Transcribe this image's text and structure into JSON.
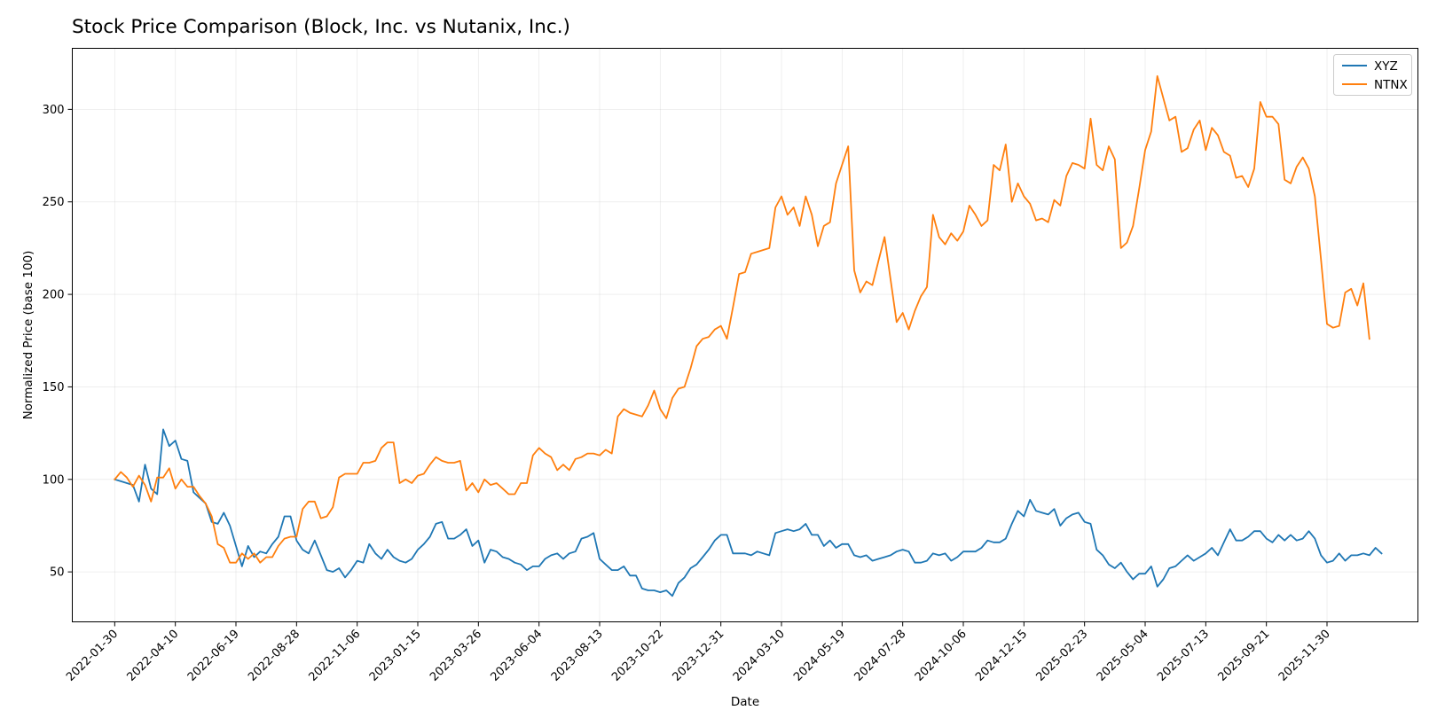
{
  "chart_data": {
    "type": "line",
    "title": "Stock Price Comparison (Block, Inc. vs Nutanix, Inc.)",
    "xlabel": "Date",
    "ylabel": "Normalized Price (base 100)",
    "x_range": [
      "2021-12-12",
      "2026-03-15"
    ],
    "ylim": [
      23,
      333
    ],
    "grid": true,
    "legend_position": "top-right",
    "x_ticks": [
      "2022-01-30",
      "2022-04-10",
      "2022-06-19",
      "2022-08-28",
      "2022-11-06",
      "2023-01-15",
      "2023-03-26",
      "2023-06-04",
      "2023-08-13",
      "2023-10-22",
      "2023-12-31",
      "2024-03-10",
      "2024-05-19",
      "2024-07-28",
      "2024-10-06",
      "2024-12-15",
      "2025-02-23",
      "2025-05-04",
      "2025-07-13",
      "2025-09-21",
      "2025-11-30"
    ],
    "y_ticks": [
      50,
      100,
      150,
      200,
      250,
      300
    ],
    "x_start": "2022-01-30",
    "x_step_days": 7,
    "series": [
      {
        "name": "XYZ",
        "color": "#1f77b4",
        "values": [
          100,
          99,
          98,
          97,
          88,
          108,
          95,
          92,
          127,
          118,
          121,
          111,
          110,
          93,
          90,
          87,
          77,
          76,
          82,
          75,
          64,
          53,
          64,
          58,
          61,
          60,
          65,
          69,
          80,
          80,
          67,
          62,
          60,
          67,
          59,
          51,
          50,
          52,
          47,
          51,
          56,
          55,
          65,
          60,
          57,
          62,
          58,
          56,
          55,
          57,
          62,
          65,
          69,
          76,
          77,
          68,
          68,
          70,
          73,
          64,
          67,
          55,
          62,
          61,
          58,
          57,
          55,
          54,
          51,
          53,
          53,
          57,
          59,
          60,
          57,
          60,
          61,
          68,
          69,
          71,
          57,
          54,
          51,
          51,
          53,
          48,
          48,
          41,
          40,
          40,
          39,
          40,
          37,
          44,
          47,
          52,
          54,
          58,
          62,
          67,
          70,
          70,
          60,
          60,
          60,
          59,
          61,
          60,
          59,
          71,
          72,
          73,
          72,
          73,
          76,
          70,
          70,
          64,
          67,
          63,
          65,
          65,
          59,
          58,
          59,
          56,
          57,
          58,
          59,
          61,
          62,
          61,
          55,
          55,
          56,
          60,
          59,
          60,
          56,
          58,
          61,
          61,
          61,
          63,
          67,
          66,
          66,
          68,
          76,
          83,
          80,
          89,
          83,
          82,
          81,
          84,
          75,
          79,
          81,
          82,
          77,
          76,
          62,
          59,
          54,
          52,
          55,
          50,
          46,
          49,
          49,
          53,
          42,
          46,
          52,
          53,
          56,
          59,
          56,
          58,
          60,
          63,
          59,
          66,
          73,
          67,
          67,
          69,
          72,
          72,
          68,
          66,
          70,
          67,
          70,
          67,
          68,
          72,
          68,
          59,
          55,
          56,
          60,
          56,
          59,
          59,
          60,
          59,
          63,
          60
        ]
      },
      {
        "name": "NTNX",
        "color": "#ff7f0e",
        "values": [
          100,
          104,
          101,
          96,
          102,
          97,
          88,
          101,
          101,
          106,
          95,
          100,
          96,
          96,
          91,
          87,
          80,
          65,
          63,
          55,
          55,
          60,
          57,
          60,
          55,
          58,
          58,
          64,
          68,
          69,
          69,
          84,
          88,
          88,
          79,
          80,
          85,
          101,
          103,
          103,
          103,
          109,
          109,
          110,
          117,
          120,
          120,
          98,
          100,
          98,
          102,
          103,
          108,
          112,
          110,
          109,
          109,
          110,
          94,
          98,
          93,
          100,
          97,
          98,
          95,
          92,
          92,
          98,
          98,
          113,
          117,
          114,
          112,
          105,
          108,
          105,
          111,
          112,
          114,
          114,
          113,
          116,
          114,
          134,
          138,
          136,
          135,
          134,
          140,
          148,
          138,
          133,
          144,
          149,
          150,
          160,
          172,
          176,
          177,
          181,
          183,
          176,
          193,
          211,
          212,
          222,
          223,
          224,
          225,
          247,
          253,
          243,
          247,
          237,
          253,
          243,
          226,
          237,
          239,
          260,
          270,
          280,
          213,
          201,
          207,
          205,
          218,
          231,
          208,
          185,
          190,
          181,
          191,
          199,
          204,
          243,
          231,
          227,
          233,
          229,
          234,
          248,
          243,
          237,
          240,
          270,
          267,
          281,
          250,
          260,
          253,
          249,
          240,
          241,
          239,
          251,
          248,
          264,
          271,
          270,
          268,
          295,
          270,
          267,
          280,
          273,
          225,
          228,
          237,
          257,
          278,
          288,
          318,
          306,
          294,
          296,
          277,
          279,
          289,
          294,
          278,
          290,
          286,
          277,
          275,
          263,
          264,
          258,
          268,
          304,
          296,
          296,
          292,
          262,
          260,
          269,
          274,
          268,
          253,
          219,
          184,
          182,
          183,
          201,
          203,
          194,
          206,
          176
        ]
      }
    ]
  }
}
